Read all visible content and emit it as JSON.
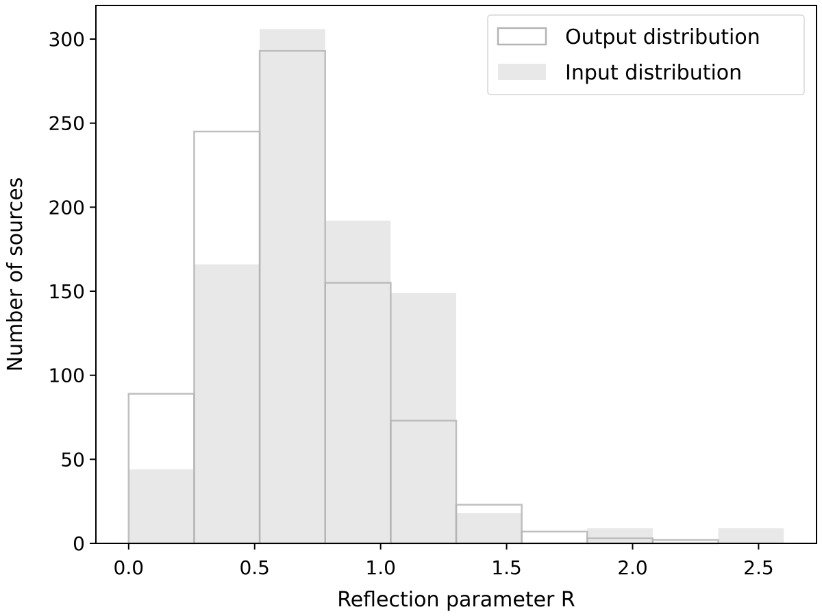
{
  "chart_data": {
    "type": "bar",
    "subtype": "histogram",
    "bin_edges": [
      0.0,
      0.26,
      0.52,
      0.78,
      1.04,
      1.3,
      1.56,
      1.82,
      2.08,
      2.34,
      2.6
    ],
    "series": [
      {
        "name": "Output distribution",
        "style": "outline",
        "color": "#b4b4b4",
        "values": [
          89,
          245,
          293,
          155,
          73,
          23,
          7,
          3,
          2,
          0
        ]
      },
      {
        "name": "Input distribution",
        "style": "filled",
        "color": "#e8e8e8",
        "values": [
          44,
          166,
          306,
          192,
          149,
          18,
          0,
          9,
          0,
          9
        ]
      }
    ],
    "xlabel": "Reflection parameter R",
    "ylabel": "Number of sources",
    "xlim": [
      -0.13,
      2.73
    ],
    "ylim": [
      0,
      320
    ],
    "xticks": [
      0.0,
      0.5,
      1.0,
      1.5,
      2.0,
      2.5
    ],
    "xtick_labels": [
      "0.0",
      "0.5",
      "1.0",
      "1.5",
      "2.0",
      "2.5"
    ],
    "yticks": [
      0,
      50,
      100,
      150,
      200,
      250,
      300
    ],
    "ytick_labels": [
      "0",
      "50",
      "100",
      "150",
      "200",
      "250",
      "300"
    ],
    "grid": false,
    "legend_position": "top-right"
  }
}
